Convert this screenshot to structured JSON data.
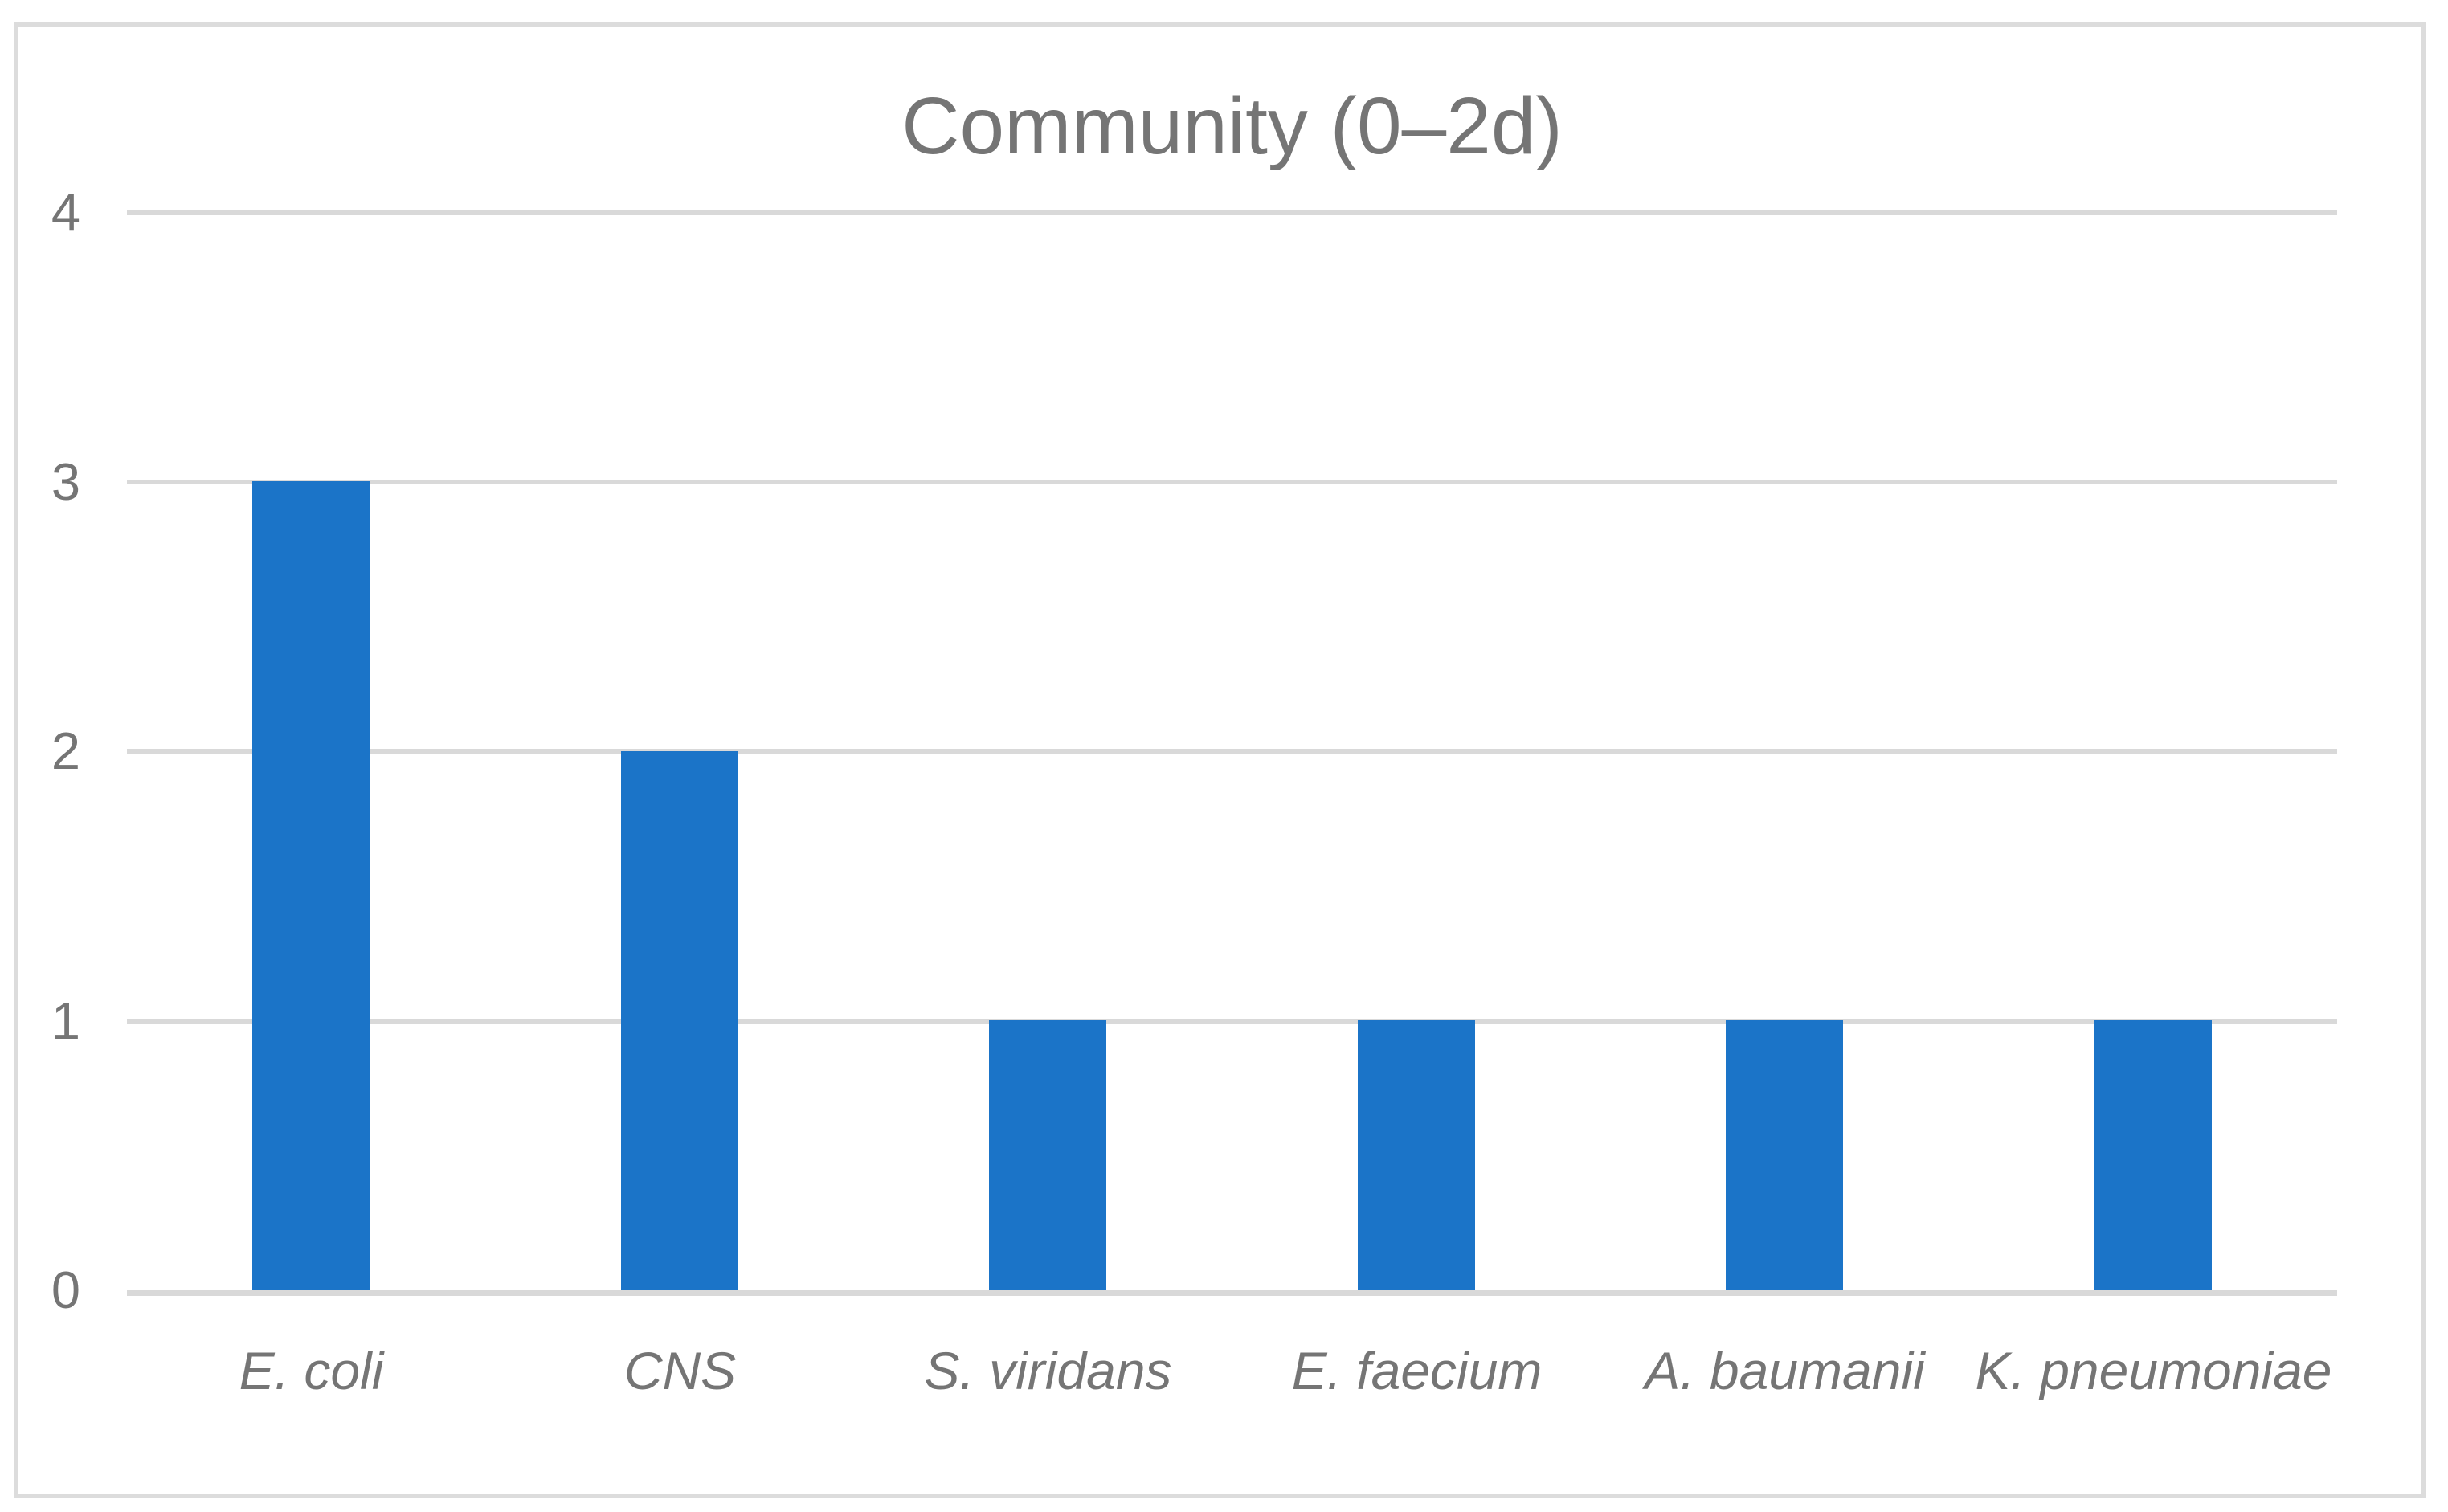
{
  "chart_data": {
    "type": "bar",
    "title": "Community (0–2d)",
    "categories": [
      "E. coli",
      "CNS",
      "S. viridans",
      "E. faecium",
      "A. baumanii",
      "K. pneumoniae"
    ],
    "values": [
      3,
      2,
      1,
      1,
      1,
      1
    ],
    "xlabel": "",
    "ylabel": "",
    "ylim": [
      0,
      4
    ],
    "yticks": [
      0,
      1,
      2,
      3,
      4
    ],
    "grid": true,
    "legend": false,
    "category_font_style": "italic",
    "styles": {
      "bar_color": "#1B74C8",
      "text_color": "#757575",
      "gridline_color": "#D9D9D9",
      "frame_border_color": "#DCDCDC",
      "background_color": "#FFFFFF"
    }
  }
}
